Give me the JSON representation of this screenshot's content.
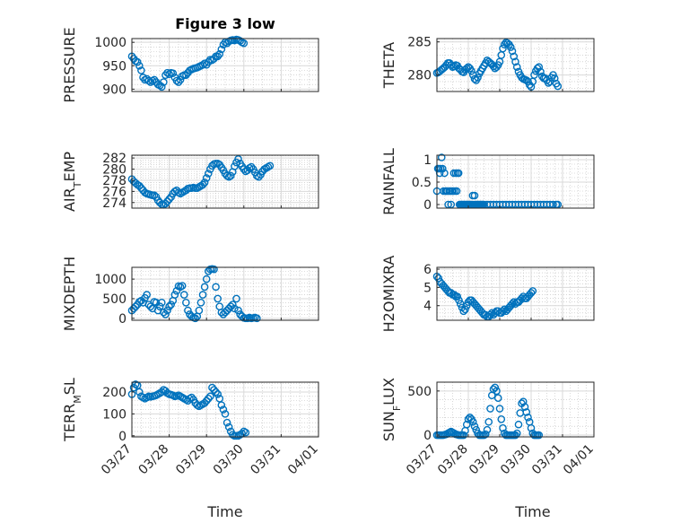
{
  "figure": {
    "title": "Figure 3 low",
    "xlabel": "Time",
    "x_ticks": [
      "03/27",
      "03/28",
      "03/29",
      "03/30",
      "03/31",
      "04/01"
    ],
    "marker_color": "#0072bd"
  },
  "chart_data": [
    {
      "type": "scatter",
      "name": "PRESSURE",
      "ylabel": "PRESSURE",
      "ylim": [
        895,
        1008
      ],
      "yticks": [
        900,
        950,
        1000
      ],
      "xlim": [
        0,
        5
      ],
      "grid": true,
      "x": [
        0.0,
        0.05,
        0.1,
        0.15,
        0.2,
        0.25,
        0.3,
        0.35,
        0.4,
        0.45,
        0.5,
        0.55,
        0.6,
        0.65,
        0.7,
        0.75,
        0.8,
        0.85,
        0.9,
        0.95,
        1.0,
        1.05,
        1.1,
        1.15,
        1.2,
        1.25,
        1.3,
        1.35,
        1.4,
        1.45,
        1.5,
        1.55,
        1.6,
        1.65,
        1.7,
        1.75,
        1.8,
        1.85,
        1.9,
        1.95,
        2.0,
        2.05,
        2.1,
        2.15,
        2.2,
        2.25,
        2.3,
        2.35,
        2.4,
        2.45,
        2.5,
        2.55,
        2.6,
        2.65,
        2.7,
        2.75,
        2.8,
        2.85,
        2.9,
        2.95,
        3.0,
        3.05,
        3.1,
        3.15,
        3.2,
        3.25,
        3.3,
        3.35,
        3.4,
        3.45,
        3.5,
        3.55,
        3.6,
        3.65,
        3.7,
        3.75,
        3.8,
        3.85
      ],
      "y": [
        970,
        965,
        960,
        958,
        950,
        940,
        925,
        920,
        922,
        918,
        915,
        918,
        920,
        915,
        910,
        908,
        905,
        915,
        930,
        935,
        932,
        935,
        934,
        925,
        918,
        915,
        920,
        928,
        930,
        930,
        935,
        940,
        942,
        944,
        945,
        946,
        948,
        950,
        952,
        955,
        952,
        958,
        963,
        962,
        965,
        970,
        970,
        975,
        985,
        995,
        1000,
        998,
        1002,
        1004,
        1005,
        1004,
        1006,
        1005,
        1003,
        1000,
        998,
        null,
        null,
        null,
        null,
        null,
        null,
        null,
        null,
        null,
        null,
        null,
        null,
        null,
        null,
        null,
        null,
        null
      ]
    },
    {
      "type": "scatter",
      "name": "THETA",
      "ylabel": "THETA",
      "ylim": [
        277.5,
        285.5
      ],
      "yticks": [
        280,
        285
      ],
      "xlim": [
        0,
        5
      ],
      "grid": true,
      "x": [
        0.0,
        0.05,
        0.1,
        0.15,
        0.2,
        0.25,
        0.3,
        0.35,
        0.4,
        0.45,
        0.5,
        0.55,
        0.6,
        0.65,
        0.7,
        0.75,
        0.8,
        0.85,
        0.9,
        0.95,
        1.0,
        1.05,
        1.1,
        1.15,
        1.2,
        1.25,
        1.3,
        1.35,
        1.4,
        1.45,
        1.5,
        1.55,
        1.6,
        1.65,
        1.7,
        1.75,
        1.8,
        1.85,
        1.9,
        1.95,
        2.0,
        2.05,
        2.1,
        2.15,
        2.2,
        2.25,
        2.3,
        2.35,
        2.4,
        2.45,
        2.5,
        2.55,
        2.6,
        2.65,
        2.7,
        2.75,
        2.8,
        2.85,
        2.9,
        2.95,
        3.0,
        3.05,
        3.1,
        3.15,
        3.2,
        3.25,
        3.3,
        3.35,
        3.4,
        3.45,
        3.5,
        3.55,
        3.6,
        3.65,
        3.7,
        3.75,
        3.8,
        3.85
      ],
      "y": [
        280.3,
        280.4,
        280.6,
        280.8,
        281.0,
        281.2,
        281.5,
        281.8,
        281.8,
        281.5,
        281.2,
        281.3,
        281.5,
        281.4,
        281.0,
        280.8,
        280.5,
        280.4,
        280.8,
        281.0,
        281.2,
        281.0,
        280.6,
        280.0,
        279.4,
        279.2,
        279.6,
        280.2,
        280.6,
        281.0,
        281.4,
        281.8,
        282.2,
        282.0,
        281.8,
        281.6,
        281.3,
        281.0,
        281.2,
        281.5,
        282.0,
        283.0,
        284.0,
        284.6,
        284.9,
        284.8,
        284.6,
        284.2,
        283.6,
        282.8,
        282.0,
        281.2,
        280.5,
        280.0,
        279.6,
        279.4,
        279.3,
        279.2,
        279.0,
        278.5,
        278.2,
        279.0,
        280.0,
        280.6,
        281.0,
        281.2,
        280.5,
        279.8,
        279.5,
        279.5,
        279.2,
        278.8,
        279.0,
        279.6,
        280.0,
        279.5,
        278.7,
        278.3
      ]
    },
    {
      "type": "scatter",
      "name": "AIR_TEMP",
      "ylabel": "AIR_TEMP",
      "ylabel_display": [
        "AIR",
        "T",
        "EMP"
      ],
      "ylim": [
        273,
        282.5
      ],
      "yticks": [
        274,
        276,
        278,
        280,
        282
      ],
      "xlim": [
        0,
        5
      ],
      "grid": true,
      "x": [
        0.0,
        0.05,
        0.1,
        0.15,
        0.2,
        0.25,
        0.3,
        0.35,
        0.4,
        0.45,
        0.5,
        0.55,
        0.6,
        0.65,
        0.7,
        0.75,
        0.8,
        0.85,
        0.9,
        0.95,
        1.0,
        1.05,
        1.1,
        1.15,
        1.2,
        1.25,
        1.3,
        1.35,
        1.4,
        1.45,
        1.5,
        1.55,
        1.6,
        1.65,
        1.7,
        1.75,
        1.8,
        1.85,
        1.9,
        1.95,
        2.0,
        2.05,
        2.1,
        2.15,
        2.2,
        2.25,
        2.3,
        2.35,
        2.4,
        2.45,
        2.5,
        2.55,
        2.6,
        2.65,
        2.7,
        2.75,
        2.8,
        2.85,
        2.9,
        2.95,
        3.0,
        3.05,
        3.1,
        3.15,
        3.2,
        3.25,
        3.3,
        3.35,
        3.4,
        3.45,
        3.5,
        3.55,
        3.6,
        3.65,
        3.7,
        3.75,
        3.8,
        3.85
      ],
      "y": [
        278.2,
        277.8,
        277.5,
        277.2,
        277.0,
        276.6,
        276.2,
        275.8,
        275.6,
        275.5,
        275.4,
        275.3,
        275.3,
        275.0,
        274.4,
        274.0,
        273.7,
        273.6,
        273.8,
        274.2,
        274.6,
        275.0,
        275.6,
        276.0,
        276.2,
        275.8,
        275.6,
        275.8,
        276.0,
        276.2,
        276.5,
        276.6,
        276.6,
        276.7,
        276.6,
        276.6,
        276.8,
        277.0,
        277.2,
        277.6,
        278.4,
        279.2,
        280.0,
        280.6,
        280.9,
        281.0,
        281.0,
        280.8,
        280.3,
        279.8,
        279.2,
        278.8,
        278.6,
        278.8,
        279.5,
        280.5,
        281.2,
        281.8,
        281.0,
        280.5,
        280.0,
        279.6,
        279.8,
        280.2,
        280.4,
        280.0,
        279.4,
        278.8,
        278.6,
        279.0,
        279.6,
        280.0,
        280.2,
        280.4,
        280.6,
        null,
        null,
        null
      ]
    },
    {
      "type": "scatter",
      "name": "RAINFALL",
      "ylabel": "RAINFALL",
      "ylim": [
        -0.08,
        1.1
      ],
      "yticks": [
        0,
        0.5,
        1
      ],
      "ytick_labels": [
        "0",
        "0.5",
        "1"
      ],
      "xlim": [
        0,
        5
      ],
      "grid": true,
      "x": [
        0.0,
        0.03,
        0.06,
        0.09,
        0.12,
        0.15,
        0.18,
        0.21,
        0.24,
        0.27,
        0.3,
        0.33,
        0.36,
        0.39,
        0.42,
        0.45,
        0.48,
        0.51,
        0.54,
        0.57,
        0.6,
        0.63,
        0.66,
        0.69,
        0.72,
        0.75,
        0.78,
        0.81,
        0.84,
        0.87,
        0.9,
        0.93,
        0.96,
        0.99,
        1.02,
        1.05,
        1.08,
        1.11,
        1.14,
        1.17,
        1.2,
        1.23,
        1.26,
        1.29,
        1.32,
        1.35,
        1.38,
        1.41,
        1.44,
        1.47,
        1.5,
        1.6,
        1.7,
        1.8,
        1.9,
        2.0,
        2.1,
        2.2,
        2.3,
        2.4,
        2.5,
        2.6,
        2.7,
        2.8,
        2.9,
        3.0,
        3.1,
        3.2,
        3.3,
        3.4,
        3.5,
        3.6,
        3.7,
        3.8,
        3.85
      ],
      "y": [
        0.3,
        0.8,
        0.8,
        0.7,
        0.8,
        1.05,
        0.8,
        0.3,
        0.7,
        0.3,
        0.3,
        0.3,
        0.0,
        0.3,
        0.3,
        0.0,
        0.3,
        0.3,
        0.7,
        0.3,
        0.7,
        0.3,
        0.7,
        0.7,
        0.0,
        0.0,
        0.0,
        0.0,
        0.0,
        0.0,
        0.0,
        0.0,
        0.0,
        0.0,
        0.0,
        0.0,
        0.0,
        0.0,
        0.2,
        0.0,
        0.2,
        0.0,
        0.0,
        0.0,
        0.0,
        0.0,
        0.0,
        0.0,
        0.0,
        0.0,
        0.0,
        0.0,
        0.0,
        0.0,
        0.0,
        0.0,
        0.0,
        0.0,
        0.0,
        0.0,
        0.0,
        0.0,
        0.0,
        0.0,
        0.0,
        0.0,
        0.0,
        0.0,
        0.0,
        0.0,
        0.0,
        0.0,
        0.0,
        0.0,
        0.0
      ]
    },
    {
      "type": "scatter",
      "name": "MIXDEPTH",
      "ylabel": "MIXDEPTH",
      "ylim": [
        -50,
        1300
      ],
      "yticks": [
        0,
        500,
        1000
      ],
      "xlim": [
        0,
        5
      ],
      "grid": true,
      "x": [
        0.0,
        0.05,
        0.1,
        0.15,
        0.2,
        0.25,
        0.3,
        0.35,
        0.4,
        0.45,
        0.5,
        0.55,
        0.6,
        0.65,
        0.7,
        0.75,
        0.8,
        0.85,
        0.9,
        0.95,
        1.0,
        1.05,
        1.1,
        1.15,
        1.2,
        1.25,
        1.3,
        1.35,
        1.4,
        1.45,
        1.5,
        1.55,
        1.6,
        1.65,
        1.7,
        1.75,
        1.8,
        1.85,
        1.9,
        1.95,
        2.0,
        2.05,
        2.1,
        2.15,
        2.2,
        2.25,
        2.3,
        2.35,
        2.4,
        2.45,
        2.5,
        2.55,
        2.6,
        2.65,
        2.7,
        2.75,
        2.8,
        2.85,
        2.9,
        2.95,
        3.0,
        3.05,
        3.1,
        3.15,
        3.2,
        3.25,
        3.3,
        3.35,
        3.4,
        3.45,
        3.5,
        3.55,
        3.6,
        3.65,
        3.7,
        3.75,
        3.8,
        3.85
      ],
      "y": [
        200,
        250,
        300,
        350,
        420,
        450,
        400,
        520,
        600,
        350,
        300,
        250,
        420,
        400,
        200,
        300,
        400,
        150,
        100,
        200,
        300,
        350,
        450,
        600,
        700,
        820,
        800,
        830,
        600,
        400,
        200,
        100,
        50,
        20,
        0,
        50,
        200,
        400,
        600,
        800,
        1000,
        1200,
        1250,
        1260,
        1250,
        800,
        500,
        300,
        150,
        100,
        150,
        200,
        250,
        300,
        350,
        250,
        500,
        200,
        100,
        50,
        10,
        0,
        0,
        20,
        0,
        10,
        20,
        0,
        null,
        null,
        null,
        null,
        null,
        null,
        null,
        null,
        null,
        null
      ]
    },
    {
      "type": "scatter",
      "name": "H2OMIXRA",
      "ylabel": "H2OMIXRA",
      "ylim": [
        3.2,
        6.1
      ],
      "yticks": [
        4,
        5,
        6
      ],
      "xlim": [
        0,
        5
      ],
      "grid": true,
      "x": [
        0.0,
        0.05,
        0.1,
        0.15,
        0.2,
        0.25,
        0.3,
        0.35,
        0.4,
        0.45,
        0.5,
        0.55,
        0.6,
        0.65,
        0.7,
        0.75,
        0.8,
        0.85,
        0.9,
        0.95,
        1.0,
        1.05,
        1.1,
        1.15,
        1.2,
        1.25,
        1.3,
        1.35,
        1.4,
        1.45,
        1.5,
        1.55,
        1.6,
        1.65,
        1.7,
        1.75,
        1.8,
        1.85,
        1.9,
        1.95,
        2.0,
        2.05,
        2.1,
        2.15,
        2.2,
        2.25,
        2.3,
        2.35,
        2.4,
        2.45,
        2.5,
        2.55,
        2.6,
        2.65,
        2.7,
        2.75,
        2.8,
        2.85,
        2.9,
        2.95,
        3.0,
        3.05,
        3.1,
        3.15,
        3.2,
        3.25,
        3.3,
        3.35,
        3.4,
        3.45,
        3.5,
        3.55,
        3.6,
        3.65,
        3.7,
        3.75,
        3.8,
        3.85
      ],
      "y": [
        5.6,
        5.5,
        5.3,
        5.2,
        5.1,
        5.0,
        4.9,
        4.8,
        4.7,
        4.7,
        4.6,
        4.6,
        4.5,
        4.5,
        4.3,
        4.1,
        3.9,
        3.7,
        3.8,
        4.0,
        4.2,
        4.3,
        4.3,
        4.2,
        4.1,
        4.0,
        3.9,
        3.8,
        3.7,
        3.6,
        3.5,
        3.5,
        3.4,
        3.4,
        3.5,
        3.6,
        3.5,
        3.6,
        3.7,
        3.7,
        3.6,
        3.6,
        3.7,
        3.8,
        3.7,
        3.8,
        3.9,
        4.0,
        4.1,
        4.2,
        4.1,
        4.2,
        4.2,
        4.3,
        4.4,
        4.5,
        4.4,
        4.4,
        4.5,
        4.6,
        4.7,
        4.8,
        null,
        null,
        null,
        null,
        null,
        null,
        null,
        null,
        null,
        null,
        null,
        null,
        null,
        null,
        null,
        null
      ]
    },
    {
      "type": "scatter",
      "name": "TERR_MSL",
      "ylabel": "TERR_MSL",
      "ylabel_display": [
        "TERR",
        "M",
        "SL"
      ],
      "ylim": [
        -5,
        245
      ],
      "yticks": [
        0,
        100,
        200
      ],
      "xlim": [
        0,
        5
      ],
      "grid": true,
      "x": [
        0.0,
        0.05,
        0.1,
        0.15,
        0.2,
        0.25,
        0.3,
        0.35,
        0.4,
        0.45,
        0.5,
        0.55,
        0.6,
        0.65,
        0.7,
        0.75,
        0.8,
        0.85,
        0.9,
        0.95,
        1.0,
        1.05,
        1.1,
        1.15,
        1.2,
        1.25,
        1.3,
        1.35,
        1.4,
        1.45,
        1.5,
        1.55,
        1.6,
        1.65,
        1.7,
        1.75,
        1.8,
        1.85,
        1.9,
        1.95,
        2.0,
        2.05,
        2.1,
        2.15,
        2.2,
        2.25,
        2.3,
        2.35,
        2.4,
        2.45,
        2.5,
        2.55,
        2.6,
        2.65,
        2.7,
        2.75,
        2.8,
        2.85,
        2.9,
        2.95,
        3.0,
        3.05,
        3.1,
        3.15,
        3.2,
        3.25,
        3.3,
        3.35,
        3.4,
        3.45,
        3.5,
        3.55,
        3.6,
        3.65,
        3.7,
        3.75,
        3.8,
        3.85
      ],
      "y": [
        190,
        220,
        235,
        230,
        200,
        180,
        175,
        170,
        175,
        180,
        178,
        180,
        182,
        185,
        190,
        195,
        200,
        210,
        205,
        195,
        190,
        188,
        185,
        180,
        182,
        185,
        180,
        175,
        170,
        165,
        160,
        170,
        175,
        165,
        150,
        140,
        135,
        140,
        145,
        150,
        160,
        170,
        180,
        220,
        210,
        200,
        190,
        170,
        140,
        120,
        100,
        60,
        40,
        20,
        5,
        0,
        0,
        0,
        5,
        10,
        20,
        15,
        null,
        null,
        null,
        null,
        null,
        null,
        null,
        null,
        null,
        null,
        null,
        null,
        null,
        null,
        null,
        null
      ]
    },
    {
      "type": "scatter",
      "name": "SUN_FLUX",
      "ylabel": "SUN_FLUX",
      "ylabel_display": [
        "SUN",
        "F",
        "LUX"
      ],
      "ylim": [
        -20,
        600
      ],
      "yticks": [
        0,
        500
      ],
      "xlim": [
        0,
        5
      ],
      "grid": true,
      "x": [
        0.0,
        0.05,
        0.1,
        0.15,
        0.2,
        0.25,
        0.3,
        0.35,
        0.4,
        0.45,
        0.5,
        0.55,
        0.6,
        0.65,
        0.7,
        0.75,
        0.8,
        0.85,
        0.9,
        0.95,
        1.0,
        1.05,
        1.1,
        1.15,
        1.2,
        1.25,
        1.3,
        1.35,
        1.4,
        1.45,
        1.5,
        1.55,
        1.6,
        1.65,
        1.7,
        1.75,
        1.8,
        1.85,
        1.9,
        1.95,
        2.0,
        2.05,
        2.1,
        2.15,
        2.2,
        2.25,
        2.3,
        2.35,
        2.4,
        2.45,
        2.5,
        2.55,
        2.6,
        2.65,
        2.7,
        2.75,
        2.8,
        2.85,
        2.9,
        2.95,
        3.0,
        3.05,
        3.1,
        3.15,
        3.2,
        3.25,
        3.3,
        3.35,
        3.4,
        3.45,
        3.5,
        3.55,
        3.6,
        3.65,
        3.7,
        3.75,
        3.8,
        3.85
      ],
      "y": [
        0,
        0,
        0,
        0,
        0,
        5,
        10,
        20,
        30,
        40,
        30,
        20,
        10,
        5,
        0,
        0,
        0,
        0,
        50,
        120,
        180,
        200,
        180,
        150,
        100,
        60,
        20,
        0,
        0,
        0,
        0,
        10,
        60,
        150,
        300,
        450,
        520,
        540,
        500,
        420,
        300,
        180,
        80,
        20,
        0,
        0,
        0,
        0,
        0,
        0,
        0,
        20,
        120,
        250,
        360,
        380,
        320,
        260,
        200,
        150,
        80,
        20,
        0,
        0,
        0,
        0,
        null,
        null,
        null,
        null,
        null,
        null,
        null,
        null,
        null,
        null,
        null,
        null
      ]
    }
  ]
}
